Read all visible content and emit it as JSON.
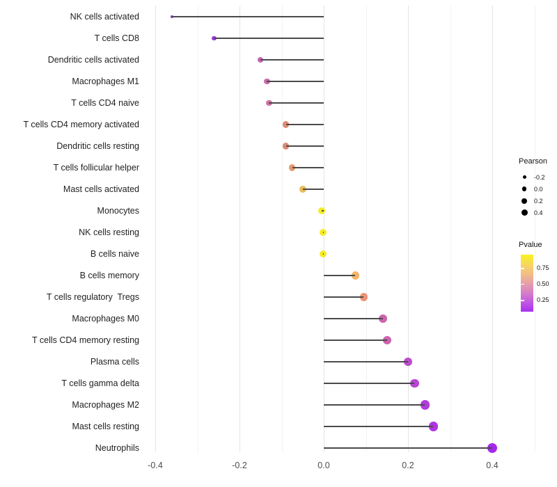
{
  "chart_data": {
    "type": "scatter",
    "variant": "lollipop",
    "orientation": "horizontal",
    "title": "",
    "xlabel": "",
    "ylabel": "",
    "x_axis": {
      "tick_labels": [
        "-0.4",
        "-0.2",
        "0.0",
        "0.2",
        "0.4"
      ],
      "tick_values": [
        -0.4,
        -0.2,
        0.0,
        0.2,
        0.4
      ],
      "minor_tick_values": [
        -0.3,
        -0.1,
        0.1,
        0.3,
        0.5
      ],
      "range": [
        -0.42,
        0.545
      ],
      "grid": "on"
    },
    "stem_color": "#4a4a4a",
    "grid_colors": {
      "major": "#e4e4e4",
      "minor": "#f2f2f2"
    },
    "points": [
      {
        "label": "NK cells activated",
        "pearson": -0.36,
        "color": "#9229DD"
      },
      {
        "label": "T cells CD8",
        "pearson": -0.26,
        "color": "#9935D6"
      },
      {
        "label": "Dendritic cells activated",
        "pearson": -0.15,
        "color": "#C964B6"
      },
      {
        "label": "Macrophages M1",
        "pearson": -0.135,
        "color": "#CC6BAB"
      },
      {
        "label": "T cells CD4 naive",
        "pearson": -0.13,
        "color": "#CF74A4"
      },
      {
        "label": "T cells CD4 memory activated",
        "pearson": -0.09,
        "color": "#DD8C72"
      },
      {
        "label": "Dendritic cells resting",
        "pearson": -0.09,
        "color": "#DD8A75"
      },
      {
        "label": "T cells follicular helper",
        "pearson": -0.075,
        "color": "#E39C6B"
      },
      {
        "label": "Mast cells activated",
        "pearson": -0.05,
        "color": "#ECBA59"
      },
      {
        "label": "Monocytes",
        "pearson": -0.005,
        "color": "#F4EB27"
      },
      {
        "label": "NK cells resting",
        "pearson": -0.002,
        "color": "#F4EB27"
      },
      {
        "label": "B cells naive",
        "pearson": -0.002,
        "color": "#F4EB27"
      },
      {
        "label": "B cells memory",
        "pearson": 0.075,
        "color": "#F2B66B"
      },
      {
        "label": "T cells regulatory  Tregs",
        "pearson": 0.095,
        "color": "#EB9478"
      },
      {
        "label": "Macrophages M0",
        "pearson": 0.14,
        "color": "#CC64AC"
      },
      {
        "label": "T cells CD4 memory resting",
        "pearson": 0.15,
        "color": "#CD62B0"
      },
      {
        "label": "Plasma cells",
        "pearson": 0.2,
        "color": "#BC4BCC"
      },
      {
        "label": "T cells gamma delta",
        "pearson": 0.215,
        "color": "#B944D2"
      },
      {
        "label": "Macrophages M2",
        "pearson": 0.24,
        "color": "#B23BDB"
      },
      {
        "label": "Mast cells resting",
        "pearson": 0.26,
        "color": "#AF35E0"
      },
      {
        "label": "Neutrophils",
        "pearson": 0.4,
        "color": "#A628EC"
      }
    ],
    "legend_pearson": {
      "title": "Pearson",
      "items": [
        {
          "label": "-0.2",
          "diameter": 5
        },
        {
          "label": "0.0",
          "diameter": 6.5
        },
        {
          "label": "0.2",
          "diameter": 8
        },
        {
          "label": "0.4",
          "diameter": 9
        }
      ],
      "position": "right"
    },
    "legend_pvalue": {
      "title": "Pvalue",
      "ticks": [
        {
          "label": "0.75",
          "pos_from_top": 0.232
        },
        {
          "label": "0.50",
          "pos_from_top": 0.512
        },
        {
          "label": "0.25",
          "pos_from_top": 0.793
        }
      ],
      "gradient_top_to_bottom": [
        "#FAF21E",
        "#F6D85C",
        "#F2BE85",
        "#E6A0A8",
        "#D87FC6",
        "#C258E2",
        "#A930F2"
      ],
      "position": "right"
    }
  }
}
